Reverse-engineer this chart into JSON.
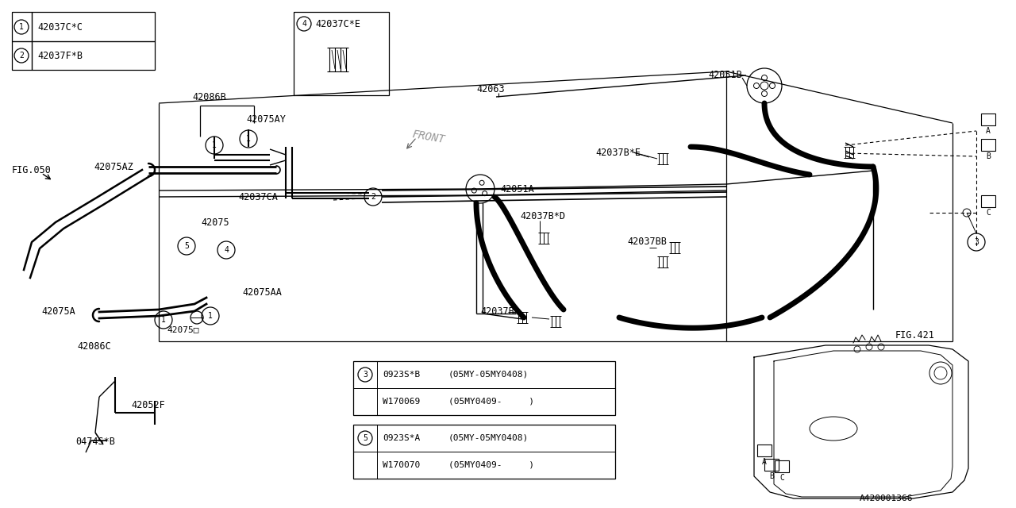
{
  "bg_color": "#ffffff",
  "line_color": "#000000",
  "legend_items": [
    {
      "num": "1",
      "part": "42037C*C"
    },
    {
      "num": "2",
      "part": "42037F*B"
    }
  ],
  "part4_part": "42037C*E",
  "fig_ref_left": "FIG.050",
  "fig_ref_right": "FIG.421",
  "diagram_ref": "A420001366",
  "table3_rows": [
    {
      "col1": "0923S*B",
      "col2": "(05MY-05MY0408)"
    },
    {
      "col1": "W170069",
      "col2": "(05MY0409-     )"
    }
  ],
  "table5_rows": [
    {
      "col1": "0923S*A",
      "col2": "(05MY-05MY0408)"
    },
    {
      "col1": "W170070",
      "col2": "(05MY0409-     )"
    }
  ]
}
